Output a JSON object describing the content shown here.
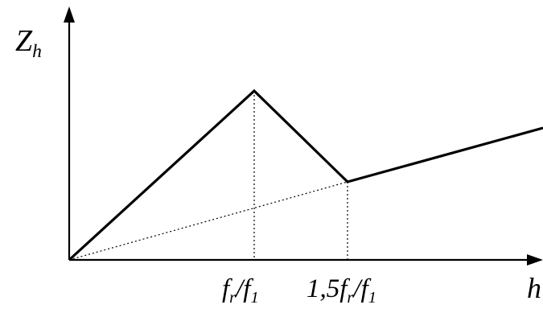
{
  "axes": {
    "y_label": {
      "base": "Z",
      "sub": "h"
    },
    "x_label": "h",
    "x_ticks": [
      {
        "pre": "f",
        "mid_sub": "r",
        "mid": "/f",
        "post_sub": "1"
      },
      {
        "pre": "1,5f",
        "mid_sub": "r",
        "mid": "/f",
        "post_sub": "1"
      }
    ]
  },
  "colors": {
    "ink": "#000000",
    "background": "#ffffff"
  }
}
